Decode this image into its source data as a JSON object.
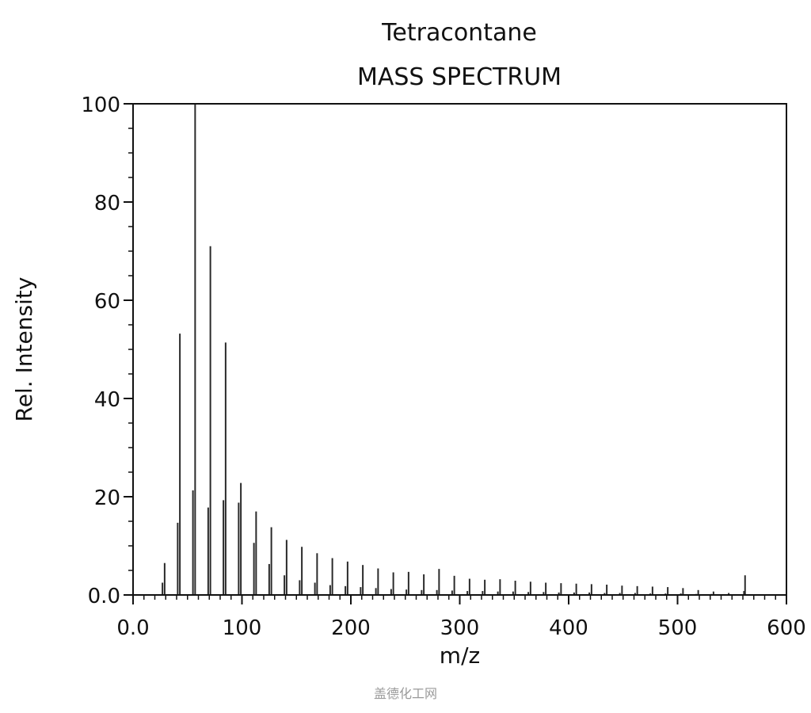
{
  "chart_data": {
    "type": "bar",
    "title": "Tetracontane",
    "subtitle": "MASS SPECTRUM",
    "xlabel": "m/z",
    "ylabel": "Rel. Intensity",
    "xlim": [
      0,
      600
    ],
    "ylim": [
      0,
      100
    ],
    "x_ticks": [
      "0.0",
      "100",
      "200",
      "300",
      "400",
      "500",
      "600"
    ],
    "y_ticks": [
      "0.0",
      "20",
      "40",
      "60",
      "80",
      "100"
    ],
    "grid": false,
    "peaks": [
      {
        "mz": 27,
        "intensity": 2.5
      },
      {
        "mz": 29,
        "intensity": 6.5
      },
      {
        "mz": 41,
        "intensity": 14.7
      },
      {
        "mz": 43,
        "intensity": 53.2
      },
      {
        "mz": 55,
        "intensity": 21.3
      },
      {
        "mz": 57,
        "intensity": 100
      },
      {
        "mz": 69,
        "intensity": 17.8
      },
      {
        "mz": 71,
        "intensity": 71
      },
      {
        "mz": 83,
        "intensity": 19.3
      },
      {
        "mz": 85,
        "intensity": 51.4
      },
      {
        "mz": 97,
        "intensity": 18.8
      },
      {
        "mz": 99,
        "intensity": 22.8
      },
      {
        "mz": 111,
        "intensity": 10.6
      },
      {
        "mz": 113,
        "intensity": 17.0
      },
      {
        "mz": 125,
        "intensity": 6.3
      },
      {
        "mz": 127,
        "intensity": 13.8
      },
      {
        "mz": 139,
        "intensity": 4.0
      },
      {
        "mz": 141,
        "intensity": 11.2
      },
      {
        "mz": 153,
        "intensity": 3.0
      },
      {
        "mz": 155,
        "intensity": 9.8
      },
      {
        "mz": 167,
        "intensity": 2.5
      },
      {
        "mz": 169,
        "intensity": 8.5
      },
      {
        "mz": 181,
        "intensity": 2.0
      },
      {
        "mz": 183,
        "intensity": 7.5
      },
      {
        "mz": 195,
        "intensity": 1.8
      },
      {
        "mz": 197,
        "intensity": 6.8
      },
      {
        "mz": 209,
        "intensity": 1.6
      },
      {
        "mz": 211,
        "intensity": 6.1
      },
      {
        "mz": 223,
        "intensity": 1.4
      },
      {
        "mz": 225,
        "intensity": 5.4
      },
      {
        "mz": 237,
        "intensity": 1.2
      },
      {
        "mz": 239,
        "intensity": 4.6
      },
      {
        "mz": 251,
        "intensity": 1.1
      },
      {
        "mz": 253,
        "intensity": 4.7
      },
      {
        "mz": 265,
        "intensity": 1.0
      },
      {
        "mz": 267,
        "intensity": 4.2
      },
      {
        "mz": 279,
        "intensity": 1.0
      },
      {
        "mz": 281,
        "intensity": 5.3
      },
      {
        "mz": 293,
        "intensity": 0.9
      },
      {
        "mz": 295,
        "intensity": 3.9
      },
      {
        "mz": 307,
        "intensity": 0.8
      },
      {
        "mz": 309,
        "intensity": 3.3
      },
      {
        "mz": 321,
        "intensity": 0.8
      },
      {
        "mz": 323,
        "intensity": 3.1
      },
      {
        "mz": 335,
        "intensity": 0.7
      },
      {
        "mz": 337,
        "intensity": 3.2
      },
      {
        "mz": 349,
        "intensity": 0.7
      },
      {
        "mz": 351,
        "intensity": 2.9
      },
      {
        "mz": 363,
        "intensity": 0.6
      },
      {
        "mz": 365,
        "intensity": 2.7
      },
      {
        "mz": 377,
        "intensity": 0.6
      },
      {
        "mz": 379,
        "intensity": 2.5
      },
      {
        "mz": 391,
        "intensity": 0.5
      },
      {
        "mz": 393,
        "intensity": 2.4
      },
      {
        "mz": 405,
        "intensity": 0.5
      },
      {
        "mz": 407,
        "intensity": 2.3
      },
      {
        "mz": 419,
        "intensity": 0.5
      },
      {
        "mz": 421,
        "intensity": 2.2
      },
      {
        "mz": 433,
        "intensity": 0.4
      },
      {
        "mz": 435,
        "intensity": 2.1
      },
      {
        "mz": 447,
        "intensity": 0.4
      },
      {
        "mz": 449,
        "intensity": 1.9
      },
      {
        "mz": 461,
        "intensity": 0.4
      },
      {
        "mz": 463,
        "intensity": 1.8
      },
      {
        "mz": 475,
        "intensity": 0.3
      },
      {
        "mz": 477,
        "intensity": 1.7
      },
      {
        "mz": 489,
        "intensity": 0.3
      },
      {
        "mz": 491,
        "intensity": 1.6
      },
      {
        "mz": 503,
        "intensity": 0.3
      },
      {
        "mz": 505,
        "intensity": 1.4
      },
      {
        "mz": 517,
        "intensity": 0.2
      },
      {
        "mz": 519,
        "intensity": 1.0
      },
      {
        "mz": 531,
        "intensity": 0.2
      },
      {
        "mz": 533,
        "intensity": 0.7
      },
      {
        "mz": 545,
        "intensity": 0.1
      },
      {
        "mz": 547,
        "intensity": 0.4
      },
      {
        "mz": 561,
        "intensity": 0.8
      },
      {
        "mz": 562,
        "intensity": 4.0
      }
    ]
  },
  "watermark": "盖德化工网"
}
